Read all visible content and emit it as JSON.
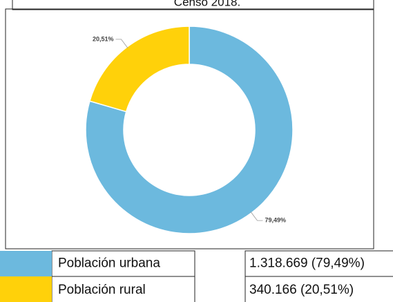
{
  "chart_data": {
    "type": "pie",
    "title": "Censo 2018.",
    "categories": [
      "Población urbana",
      "Población rural"
    ],
    "values": [
      79.49,
      20.51
    ],
    "value_labels": [
      "79,49%",
      "20,51%"
    ],
    "colors": [
      "#6cb9de",
      "#ffd10a"
    ],
    "donut": true
  },
  "table": {
    "rows": [
      {
        "value": "1.318.669 (79,49%)"
      },
      {
        "value": "340.166 (20,51%)"
      }
    ]
  }
}
